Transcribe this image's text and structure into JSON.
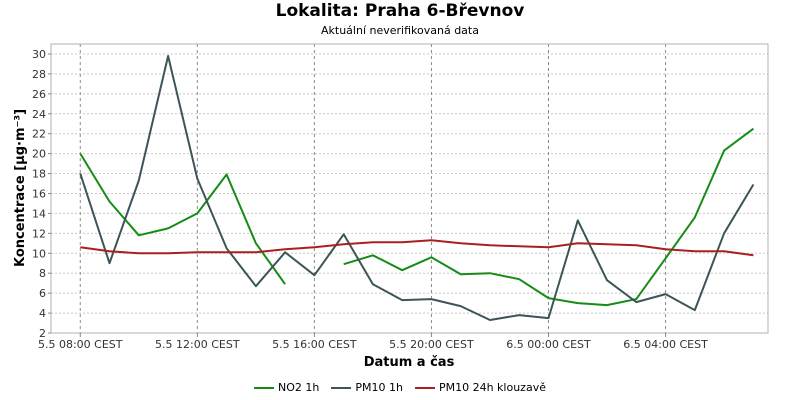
{
  "chart_data": {
    "type": "line",
    "title": "Lokalita: Praha 6-Břevnov",
    "subtitle": "Aktuální neverifikovaná data",
    "xlabel": "Datum a čas",
    "ylabel": "Koncentrace [µg·m⁻³]",
    "ylim": [
      2,
      31
    ],
    "yticks": [
      2,
      4,
      6,
      8,
      10,
      12,
      14,
      16,
      18,
      20,
      22,
      24,
      26,
      28,
      30
    ],
    "xlim": [
      "2025-05-05 07:00",
      "2025-05-06 07:30"
    ],
    "xticks": [
      {
        "t": "2025-05-05 08:00",
        "label": "5.5 08:00 CEST"
      },
      {
        "t": "2025-05-05 12:00",
        "label": "5.5 12:00 CEST"
      },
      {
        "t": "2025-05-05 16:00",
        "label": "5.5 16:00 CEST"
      },
      {
        "t": "2025-05-05 20:00",
        "label": "5.5 20:00 CEST"
      },
      {
        "t": "2025-05-06 00:00",
        "label": "6.5 00:00 CEST"
      },
      {
        "t": "2025-05-06 04:00",
        "label": "6.5 04:00 CEST"
      }
    ],
    "grid": true,
    "legend_position": "bottom",
    "series": [
      {
        "name": "NO2 1h",
        "color": "#168c16",
        "x": [
          "2025-05-05 08:00",
          "2025-05-05 09:00",
          "2025-05-05 10:00",
          "2025-05-05 11:00",
          "2025-05-05 12:00",
          "2025-05-05 13:00",
          "2025-05-05 14:00",
          "2025-05-05 15:00",
          "2025-05-05 16:00",
          "2025-05-05 17:00",
          "2025-05-05 18:00",
          "2025-05-05 19:00",
          "2025-05-05 20:00",
          "2025-05-05 21:00",
          "2025-05-05 22:00",
          "2025-05-05 23:00",
          "2025-05-06 00:00",
          "2025-05-06 01:00",
          "2025-05-06 02:00",
          "2025-05-06 03:00",
          "2025-05-06 04:00",
          "2025-05-06 05:00",
          "2025-05-06 06:00",
          "2025-05-06 07:00"
        ],
        "values": [
          20.0,
          15.2,
          11.8,
          12.5,
          14.0,
          17.9,
          11.0,
          6.9,
          null,
          8.9,
          9.8,
          8.3,
          9.6,
          7.9,
          8.0,
          7.4,
          5.5,
          5.0,
          4.8,
          5.4,
          9.5,
          13.6,
          20.3,
          22.5
        ]
      },
      {
        "name": "PM10 1h",
        "color": "#3c5558",
        "x": [
          "2025-05-05 08:00",
          "2025-05-05 09:00",
          "2025-05-05 10:00",
          "2025-05-05 11:00",
          "2025-05-05 12:00",
          "2025-05-05 13:00",
          "2025-05-05 14:00",
          "2025-05-05 15:00",
          "2025-05-05 16:00",
          "2025-05-05 17:00",
          "2025-05-05 18:00",
          "2025-05-05 19:00",
          "2025-05-05 20:00",
          "2025-05-05 21:00",
          "2025-05-05 22:00",
          "2025-05-05 23:00",
          "2025-05-06 00:00",
          "2025-05-06 01:00",
          "2025-05-06 02:00",
          "2025-05-06 03:00",
          "2025-05-06 04:00",
          "2025-05-06 05:00",
          "2025-05-06 06:00",
          "2025-05-06 07:00"
        ],
        "values": [
          18.0,
          9.0,
          17.3,
          29.8,
          17.5,
          10.5,
          6.7,
          10.1,
          7.8,
          11.9,
          6.9,
          5.3,
          5.4,
          4.7,
          3.3,
          3.8,
          3.5,
          13.3,
          7.3,
          5.1,
          5.9,
          4.3,
          12.0,
          16.9
        ]
      },
      {
        "name": "PM10 24h klouzavě",
        "color": "#aa2020",
        "x": [
          "2025-05-05 08:00",
          "2025-05-05 09:00",
          "2025-05-05 10:00",
          "2025-05-05 11:00",
          "2025-05-05 12:00",
          "2025-05-05 13:00",
          "2025-05-05 14:00",
          "2025-05-05 15:00",
          "2025-05-05 16:00",
          "2025-05-05 17:00",
          "2025-05-05 18:00",
          "2025-05-05 19:00",
          "2025-05-05 20:00",
          "2025-05-05 21:00",
          "2025-05-05 22:00",
          "2025-05-05 23:00",
          "2025-05-06 00:00",
          "2025-05-06 01:00",
          "2025-05-06 02:00",
          "2025-05-06 03:00",
          "2025-05-06 04:00",
          "2025-05-06 05:00",
          "2025-05-06 06:00",
          "2025-05-06 07:00"
        ],
        "values": [
          10.6,
          10.2,
          10.0,
          10.0,
          10.1,
          10.1,
          10.1,
          10.4,
          10.6,
          10.9,
          11.1,
          11.1,
          11.3,
          11.0,
          10.8,
          10.7,
          10.6,
          11.0,
          10.9,
          10.8,
          10.4,
          10.2,
          10.2,
          9.8
        ]
      }
    ]
  }
}
